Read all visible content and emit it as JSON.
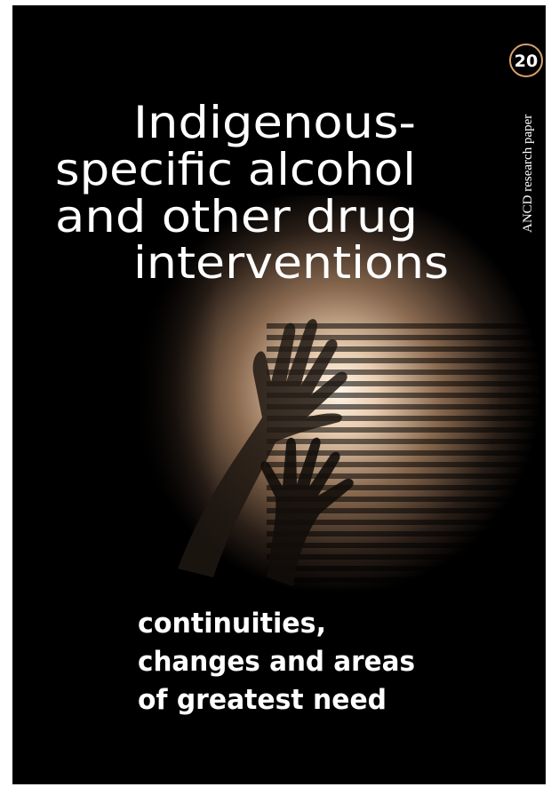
{
  "series_number": "20",
  "series_label": "ANCD research paper",
  "title_lines": [
    "Indigenous-",
    "specific alcohol",
    "and other drug",
    "interventions"
  ],
  "subtitle_lines": [
    "continuities,",
    "changes and areas",
    "of greatest need"
  ]
}
